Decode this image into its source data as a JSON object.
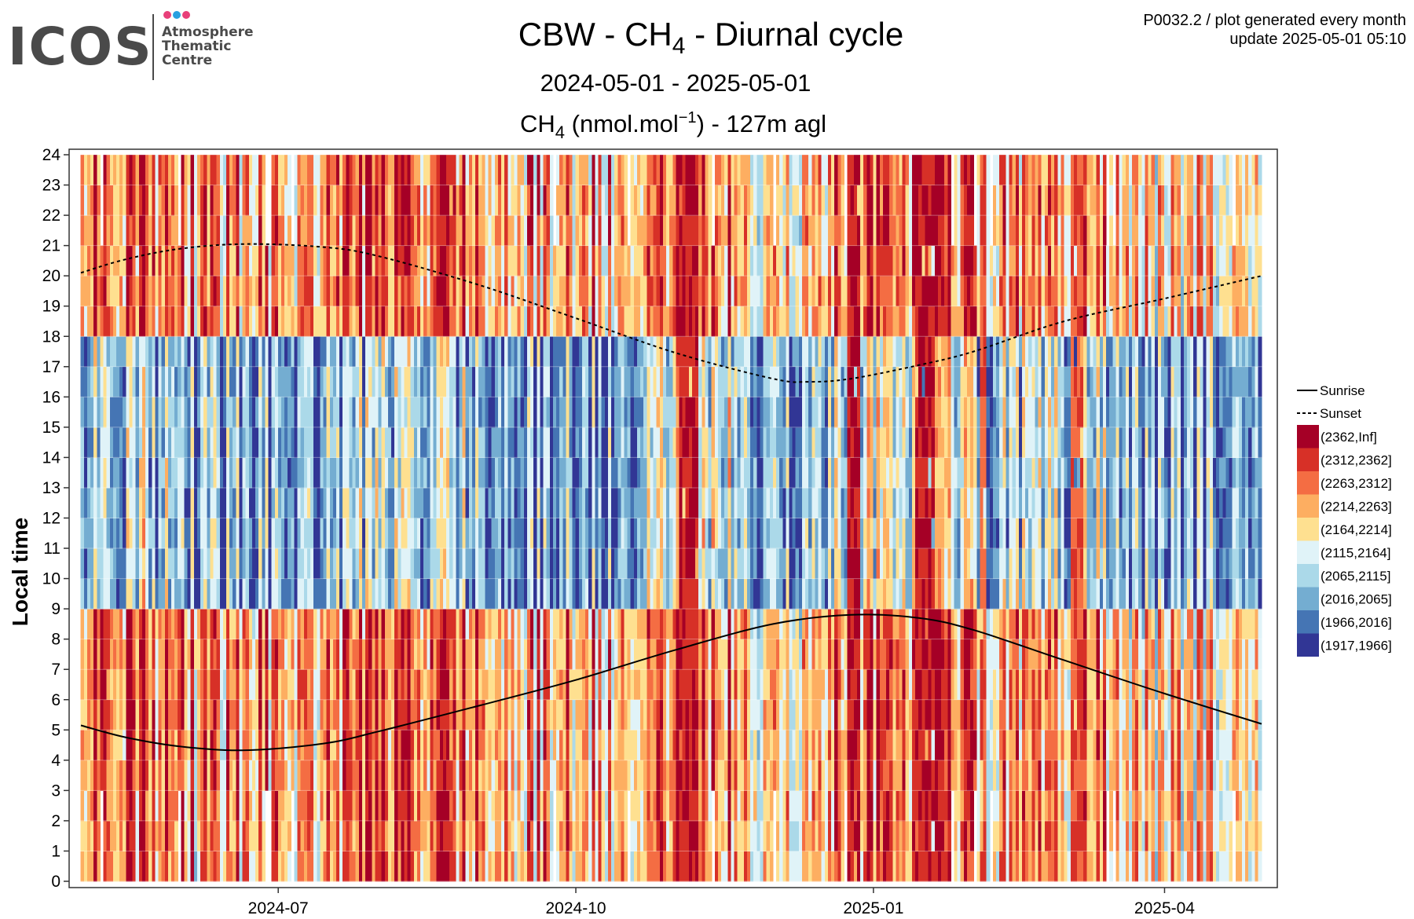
{
  "header": {
    "logo_word": "ICOS",
    "logo_lines": [
      "Atmosphere",
      "Thematic",
      "Centre"
    ],
    "logo_dot_colors": [
      "#e8407a",
      "#28a0e0",
      "#e8407a"
    ],
    "note_line1": "P0032.2 / plot generated every month",
    "note_line2": "update  2025-05-01 05:10"
  },
  "chart_data": {
    "type": "heatmap",
    "title_parts": [
      "CBW - CH",
      "4",
      " - Diurnal cycle"
    ],
    "subtitle": "2024-05-01 - 2025-05-01",
    "subtitle2_parts": [
      "CH",
      "4",
      " (nmol.mol",
      "−1",
      ") - 127m agl"
    ],
    "ylabel": "Local time",
    "xlabel": "",
    "x_range": [
      "2024-05-01",
      "2025-05-01"
    ],
    "x_ticks": [
      {
        "date": "2024-07-01",
        "label": "2024-07"
      },
      {
        "date": "2024-10-01",
        "label": "2024-10"
      },
      {
        "date": "2025-01-01",
        "label": "2025-01"
      },
      {
        "date": "2025-04-01",
        "label": "2025-04"
      }
    ],
    "ylim": [
      0,
      24
    ],
    "y_ticks": [
      0,
      1,
      2,
      3,
      4,
      5,
      6,
      7,
      8,
      9,
      10,
      11,
      12,
      13,
      14,
      15,
      16,
      17,
      18,
      19,
      20,
      21,
      22,
      23,
      24
    ],
    "grid": true,
    "legend_position": "right",
    "lines": [
      {
        "name": "Sunrise",
        "style": "solid",
        "points": [
          [
            "2024-05-01",
            5.15
          ],
          [
            "2024-05-15",
            4.75
          ],
          [
            "2024-06-01",
            4.45
          ],
          [
            "2024-06-21",
            4.33
          ],
          [
            "2024-07-15",
            4.55
          ],
          [
            "2024-08-01",
            4.95
          ],
          [
            "2024-09-01",
            5.8
          ],
          [
            "2024-10-01",
            6.65
          ],
          [
            "2024-11-01",
            7.65
          ],
          [
            "2024-12-01",
            8.5
          ],
          [
            "2024-12-25",
            8.8
          ],
          [
            "2025-01-15",
            8.7
          ],
          [
            "2025-02-01",
            8.3
          ],
          [
            "2025-03-01",
            7.3
          ],
          [
            "2025-04-01",
            6.2
          ],
          [
            "2025-05-01",
            5.2
          ]
        ]
      },
      {
        "name": "Sunset",
        "style": "dashed",
        "points": [
          [
            "2024-05-01",
            20.1
          ],
          [
            "2024-05-15",
            20.55
          ],
          [
            "2024-06-01",
            20.9
          ],
          [
            "2024-06-21",
            21.05
          ],
          [
            "2024-07-15",
            20.95
          ],
          [
            "2024-08-01",
            20.65
          ],
          [
            "2024-09-01",
            19.7
          ],
          [
            "2024-10-01",
            18.6
          ],
          [
            "2024-11-01",
            17.45
          ],
          [
            "2024-12-01",
            16.6
          ],
          [
            "2024-12-12",
            16.5
          ],
          [
            "2024-12-25",
            16.6
          ],
          [
            "2025-01-15",
            17.05
          ],
          [
            "2025-02-01",
            17.5
          ],
          [
            "2025-03-01",
            18.5
          ],
          [
            "2025-04-01",
            19.25
          ],
          [
            "2025-05-01",
            20.0
          ]
        ]
      }
    ],
    "bins": [
      {
        "label": "(2362,Inf]",
        "color": "#a50026"
      },
      {
        "label": "(2312,2362]",
        "color": "#d73027"
      },
      {
        "label": "(2263,2312]",
        "color": "#f46d43"
      },
      {
        "label": "(2214,2263]",
        "color": "#fdae61"
      },
      {
        "label": "(2164,2214]",
        "color": "#fee090"
      },
      {
        "label": "(2115,2164]",
        "color": "#e0f3f8"
      },
      {
        "label": "(2065,2115]",
        "color": "#abd9e9"
      },
      {
        "label": "(2016,2065]",
        "color": "#74add1"
      },
      {
        "label": "(1966,2016]",
        "color": "#4575b4"
      },
      {
        "label": "(1917,1966]",
        "color": "#313695"
      }
    ],
    "daily_level_profile": [
      {
        "from": "2024-05-01",
        "to": "2024-06-01",
        "night": 2,
        "day": 6
      },
      {
        "from": "2024-06-01",
        "to": "2024-07-20",
        "night": 3,
        "day": 7
      },
      {
        "from": "2024-07-20",
        "to": "2024-09-01",
        "night": 2,
        "day": 6
      },
      {
        "from": "2024-09-01",
        "to": "2024-10-20",
        "night": 3,
        "day": 7
      },
      {
        "from": "2024-10-20",
        "to": "2024-11-20",
        "night": 2,
        "day": 5
      },
      {
        "from": "2024-11-20",
        "to": "2024-12-20",
        "night": 4,
        "day": 7
      },
      {
        "from": "2024-12-20",
        "to": "2025-02-01",
        "night": 2,
        "day": 5
      },
      {
        "from": "2025-02-01",
        "to": "2025-03-15",
        "night": 3,
        "day": 6
      },
      {
        "from": "2025-03-15",
        "to": "2025-05-01",
        "night": 4,
        "day": 7
      }
    ],
    "high_episodes": [
      {
        "from": "2024-11-02",
        "to": "2024-11-08",
        "level": 0
      },
      {
        "from": "2024-12-24",
        "to": "2024-12-28",
        "level": 0
      },
      {
        "from": "2025-01-14",
        "to": "2025-01-20",
        "level": 0
      },
      {
        "from": "2025-02-03",
        "to": "2025-02-05",
        "level": 1
      },
      {
        "from": "2025-03-03",
        "to": "2025-03-07",
        "level": 1
      }
    ],
    "legend_lines": [
      {
        "label": "Sunrise",
        "style": "solid"
      },
      {
        "label": "Sunset",
        "style": "dashed"
      }
    ]
  }
}
